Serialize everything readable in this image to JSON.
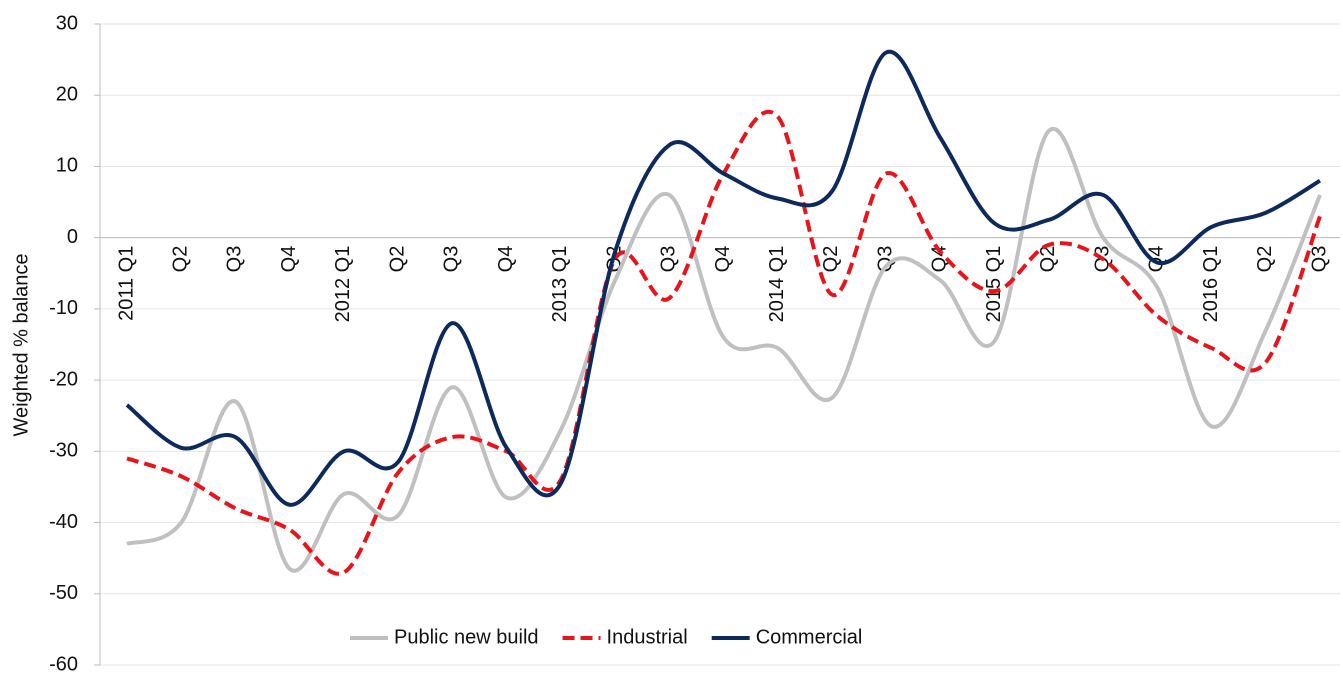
{
  "chart_data": {
    "type": "line",
    "y_label": "Weighted % balance",
    "categories": [
      "2011 Q1",
      "Q2",
      "Q3",
      "Q4",
      "2012 Q1",
      "Q2",
      "Q3",
      "Q4",
      "2013 Q1",
      "Q2",
      "Q3",
      "Q4",
      "2014 Q1",
      "Q2",
      "Q3",
      "Q4",
      "2015 Q1",
      "Q2",
      "Q3",
      "Q4",
      "2016 Q1",
      "Q2",
      "Q3"
    ],
    "series": [
      {
        "name": "Public new build",
        "color": "#c0c0c0",
        "dash": false,
        "values": [
          -43,
          -40,
          -23,
          -46.5,
          -36,
          -39,
          -21,
          -36.5,
          -27,
          -6,
          6,
          -14,
          -15.5,
          -22.5,
          -4,
          -6,
          -14.5,
          15,
          0,
          -7,
          -26.5,
          -13,
          6
        ]
      },
      {
        "name": "Industrial",
        "color": "#e8141c",
        "dash": true,
        "values": [
          -31,
          -33.5,
          -38,
          -41,
          -47,
          -33,
          -28,
          -30,
          -34,
          -3,
          -8.5,
          9,
          17,
          -8,
          9,
          -2,
          -7.5,
          -1,
          -3,
          -11,
          -15.5,
          -17.5,
          3
        ]
      },
      {
        "name": "Commercial",
        "color": "#0e2a5c",
        "dash": false,
        "values": [
          -23.5,
          -29.5,
          -28,
          -37.5,
          -30,
          -31.5,
          -12,
          -29.5,
          -34.5,
          -2,
          13,
          9,
          5.5,
          6.5,
          26,
          14,
          2,
          2.5,
          6,
          -3.5,
          1.5,
          3.5,
          8
        ]
      }
    ],
    "ylim": [
      -60,
      30
    ],
    "yticks": [
      -60,
      -50,
      -40,
      -30,
      -20,
      -10,
      0,
      10,
      20,
      30
    ],
    "grid": true,
    "legend": "bottom"
  }
}
